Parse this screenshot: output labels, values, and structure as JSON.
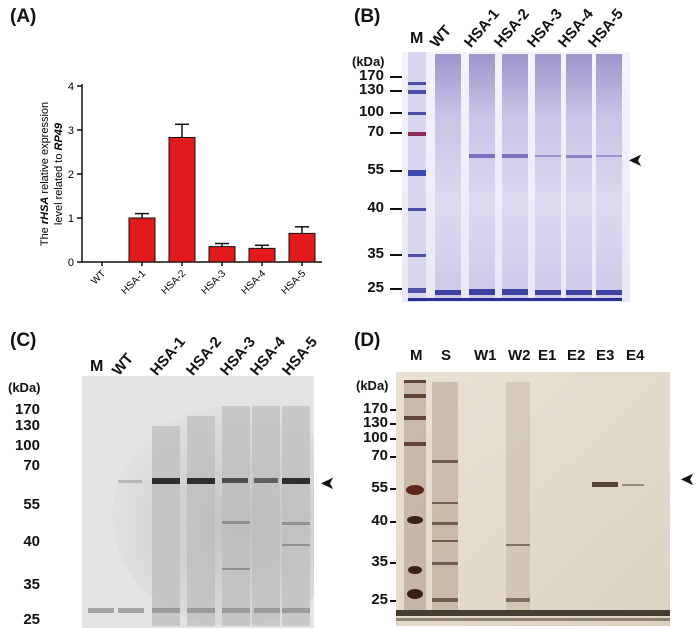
{
  "panels": {
    "A": {
      "label": "(A)"
    },
    "B": {
      "label": "(B)"
    },
    "C": {
      "label": "(C)"
    },
    "D": {
      "label": "(D)"
    }
  },
  "chart_data": {
    "type": "bar",
    "title": "",
    "ylabel_parts": [
      "The ",
      "rHSA",
      " relative expression",
      "level related to ",
      "RP49"
    ],
    "xlabel": "",
    "categories": [
      "WT",
      "HSA-1",
      "HSA-2",
      "HSA-3",
      "HSA-4",
      "HSA-5"
    ],
    "values": [
      0,
      1.0,
      2.83,
      0.35,
      0.31,
      0.65
    ],
    "errors": [
      0,
      0.1,
      0.3,
      0.07,
      0.07,
      0.15
    ],
    "ylim": [
      0,
      4
    ],
    "yticks": [
      0,
      1,
      2,
      3,
      4
    ],
    "bar_color": "#e31a1c"
  },
  "gel_B": {
    "marker_label": "M",
    "lanes": [
      "WT",
      "HSA-1",
      "HSA-2",
      "HSA-3",
      "HSA-4",
      "HSA-5"
    ],
    "kda_label": "(kDa)",
    "mw": [
      "170",
      "130",
      "100",
      "70",
      "55",
      "40",
      "35",
      "25"
    ]
  },
  "gel_C": {
    "marker_label": "M",
    "lanes": [
      "WT",
      "HSA-1",
      "HSA-2",
      "HSA-3",
      "HSA-4",
      "HSA-5"
    ],
    "kda_label": "(kDa)",
    "mw": [
      "170",
      "130",
      "100",
      "70",
      "55",
      "40",
      "35",
      "25"
    ]
  },
  "gel_D": {
    "lanes": [
      "M",
      "S",
      "W1",
      "W2",
      "E1",
      "E2",
      "E3",
      "E4"
    ],
    "kda_label": "(kDa)",
    "mw": [
      "170",
      "130",
      "100",
      "70",
      "55",
      "40",
      "35",
      "25"
    ]
  },
  "arrow_glyph": "➤"
}
